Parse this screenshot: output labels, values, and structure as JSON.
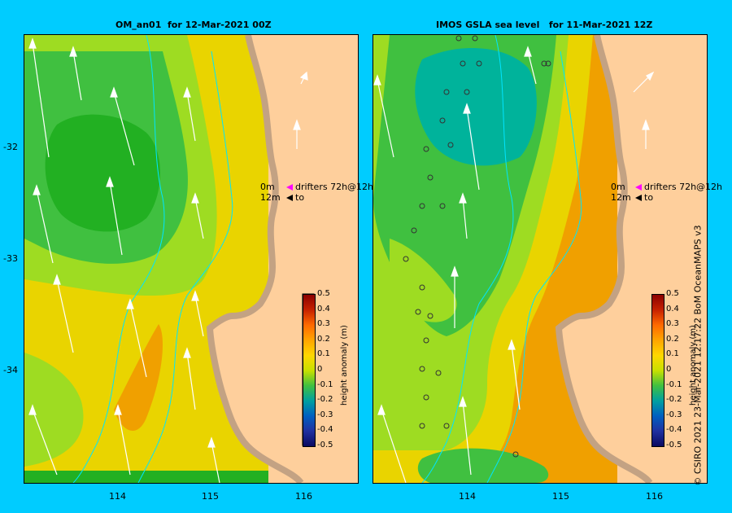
{
  "left_panel": {
    "title": "OM_an01  for 12-Mar-2021 00Z",
    "legend": {
      "line1": "0m",
      "line2": "12m",
      "drifter_label": "drifters 72h@12h",
      "to_label": "to"
    }
  },
  "right_panel": {
    "title": "IMOS GSLA sea level   for 11-Mar-2021 12Z",
    "legend": {
      "line1": "0m",
      "line2": "12m",
      "drifter_label": "drifters 72h@12h",
      "to_label": "to"
    }
  },
  "axes": {
    "lat_ticks": [
      "-32",
      "-33",
      "-34"
    ],
    "lon_ticks": [
      "114",
      "115",
      "116"
    ]
  },
  "colorbar": {
    "label": "height anomaly (m)",
    "ticks": [
      "0.5",
      "0.4",
      "0.3",
      "0.2",
      "0.1",
      "0",
      "-0.1",
      "-0.2",
      "-0.3",
      "-0.4",
      "-0.5"
    ],
    "colors": [
      "#8b0000",
      "#c62200",
      "#ff6a00",
      "#ffa500",
      "#ffd700",
      "#c8e000",
      "#40c040",
      "#00a0a0",
      "#0060c0",
      "#2030a0",
      "#0a0a60"
    ]
  },
  "credit": "© CSIRO 2021   23-Mar-2021 12:17:22 BoM OceanMAPS v3",
  "colors": {
    "background": "#00ccff",
    "land": "#fecf9c",
    "coast": "#c3a283",
    "green_dark": "#22b022",
    "green": "#40c040",
    "yellow_green": "#9edc22",
    "yellow": "#e9d400",
    "orange": "#f0a000",
    "teal": "#00b39b"
  }
}
